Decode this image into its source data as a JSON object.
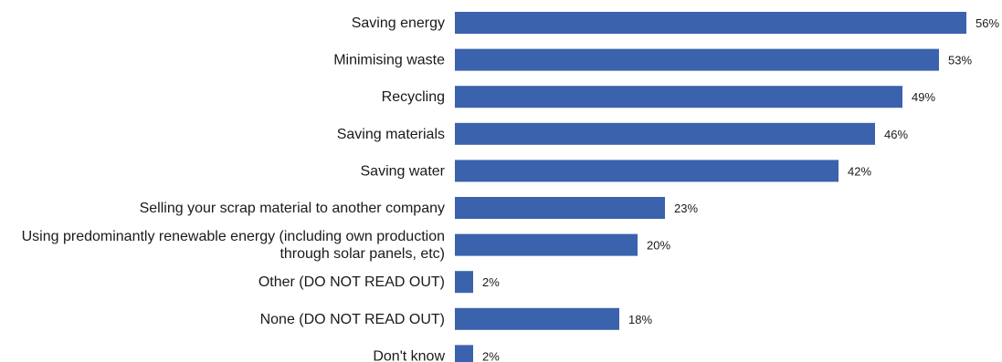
{
  "chart_data": {
    "type": "bar",
    "orientation": "horizontal",
    "title": "",
    "xlabel": "",
    "ylabel": "",
    "xlim": [
      0,
      56
    ],
    "grid": false,
    "legend": "none",
    "bar_color": "#3A62AD",
    "categories": [
      [
        "Saving energy"
      ],
      [
        "Minimising waste"
      ],
      [
        "Recycling"
      ],
      [
        "Saving materials"
      ],
      [
        "Saving water"
      ],
      [
        "Selling your scrap material to another company"
      ],
      [
        "Using predominantly renewable energy (including own production",
        "through solar panels, etc)"
      ],
      [
        "Other (DO NOT READ OUT)"
      ],
      [
        "None (DO NOT READ OUT)"
      ],
      [
        "Don't know"
      ]
    ],
    "values": [
      56,
      53,
      49,
      46,
      42,
      23,
      20,
      2,
      18,
      2
    ],
    "value_labels": [
      "56%",
      "53%",
      "49%",
      "46%",
      "42%",
      "23%",
      "20%",
      "2%",
      "18%",
      "2%"
    ]
  }
}
